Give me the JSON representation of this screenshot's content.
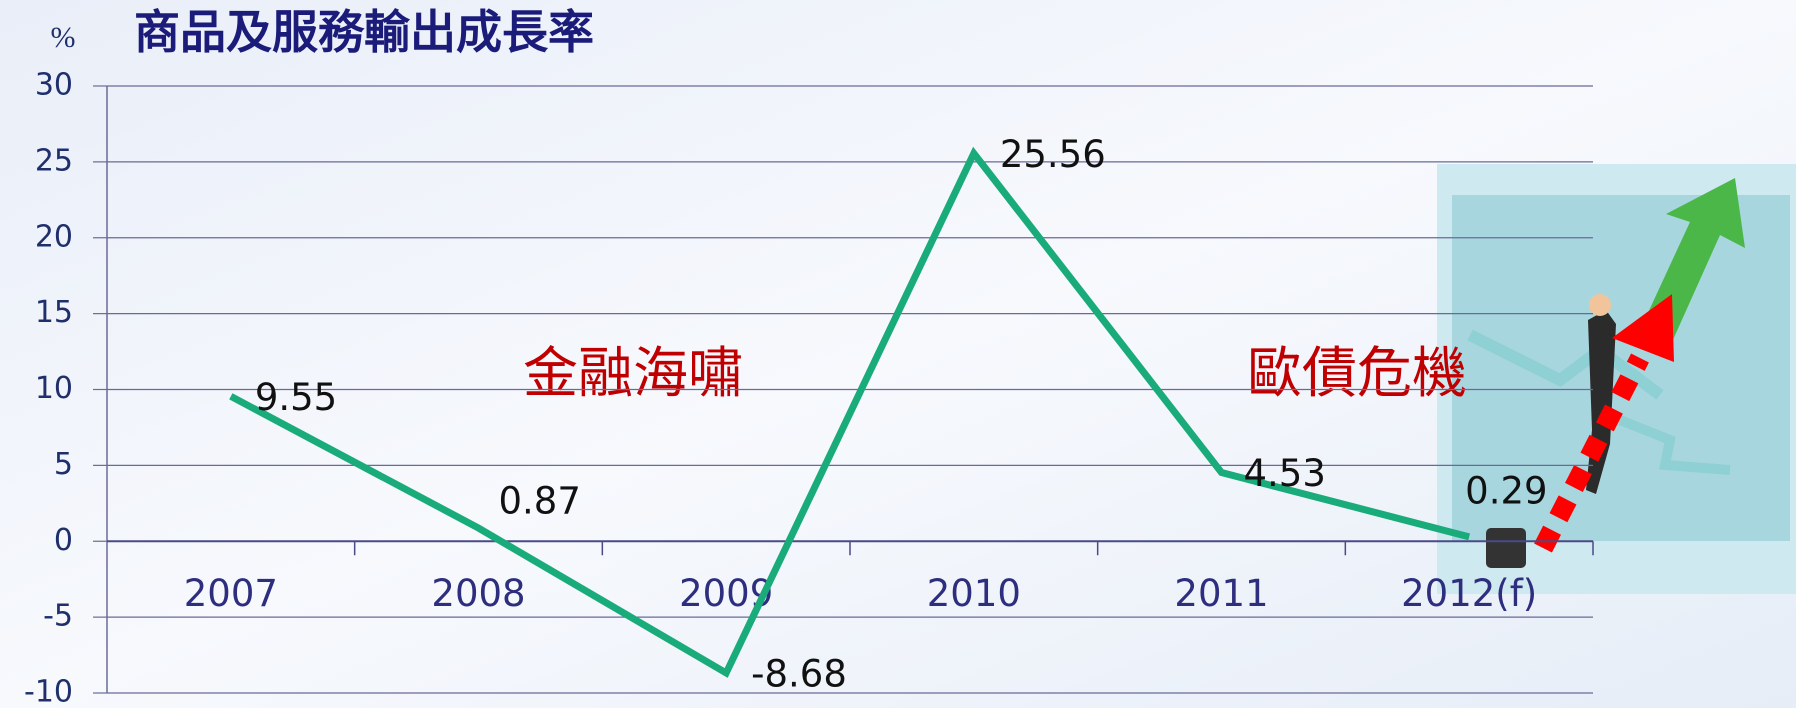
{
  "chart_data": {
    "type": "line",
    "title": "商品及服務輸出成長率",
    "y_unit": "%",
    "categories": [
      "2007",
      "2008",
      "2009",
      "2010",
      "2011",
      "2012(f)"
    ],
    "values": [
      9.55,
      0.87,
      -8.68,
      25.56,
      4.53,
      0.29
    ],
    "color": "#1aab7a",
    "ylim": [
      -10,
      30
    ],
    "yticks": [
      -10,
      -5,
      0,
      5,
      10,
      15,
      20,
      25,
      30
    ],
    "grid": true,
    "annotations": [
      "金融海嘯",
      "歐債危機"
    ]
  }
}
